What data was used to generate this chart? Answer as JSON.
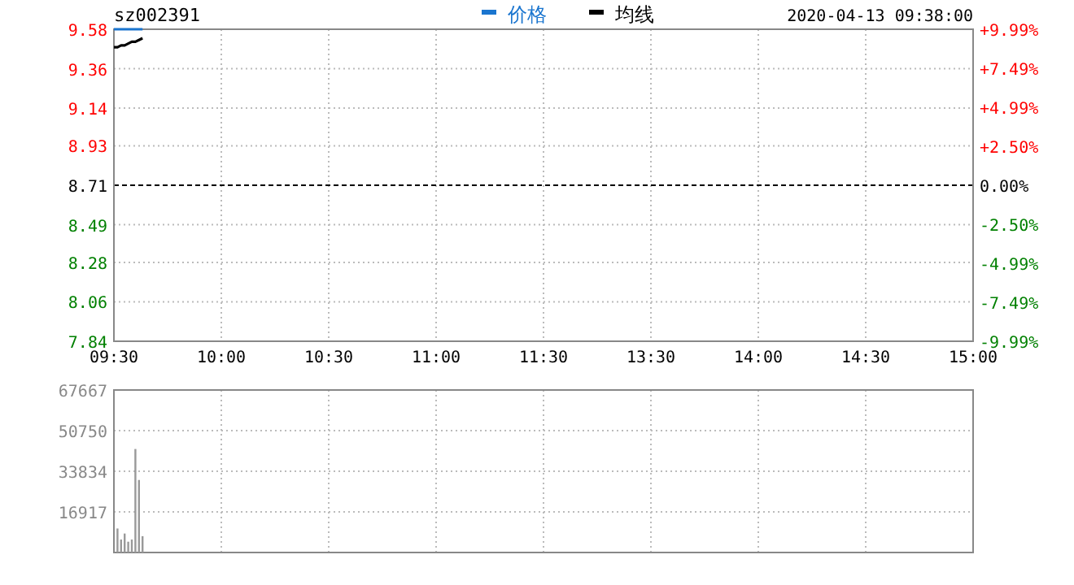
{
  "chart_data": [
    {
      "type": "line",
      "title": "sz002391",
      "annotations": [
        "2020-04-13 09:38:00"
      ],
      "legend": "top",
      "grid": true,
      "categories": [
        "09:30",
        null,
        null,
        null,
        null,
        null,
        null,
        null,
        null,
        null,
        null,
        null,
        null,
        null,
        null,
        null,
        null,
        null,
        null,
        null,
        null,
        null,
        null,
        null,
        null,
        null,
        null,
        null,
        null,
        null,
        "10:00",
        null,
        null,
        null,
        null,
        null,
        null,
        null,
        null,
        null,
        null,
        null,
        null,
        null,
        null,
        null,
        null,
        null,
        null,
        null,
        null,
        null,
        null,
        null,
        null,
        null,
        null,
        null,
        null,
        null,
        "10:30",
        null,
        null,
        null,
        null,
        null,
        null,
        null,
        null,
        null,
        null,
        null,
        null,
        null,
        null,
        null,
        null,
        null,
        null,
        null,
        null,
        null,
        null,
        null,
        null,
        null,
        null,
        null,
        null,
        null,
        "11:00",
        null,
        null,
        null,
        null,
        null,
        null,
        null,
        null,
        null,
        null,
        null,
        null,
        null,
        null,
        null,
        null,
        null,
        null,
        null,
        null,
        null,
        null,
        null,
        null,
        null,
        null,
        null,
        null,
        null,
        "11:30",
        null,
        null,
        null,
        null,
        null,
        null,
        null,
        null,
        null,
        null,
        null,
        null,
        null,
        null,
        null,
        null,
        null,
        null,
        null,
        null,
        null,
        null,
        null,
        null,
        null,
        null,
        null,
        null,
        null,
        "13:30",
        null,
        null,
        null,
        null,
        null,
        null,
        null,
        null,
        null,
        null,
        null,
        null,
        null,
        null,
        null,
        null,
        null,
        null,
        null,
        null,
        null,
        null,
        null,
        null,
        null,
        null,
        null,
        null,
        null,
        "14:00",
        null,
        null,
        null,
        null,
        null,
        null,
        null,
        null,
        null,
        null,
        null,
        null,
        null,
        null,
        null,
        null,
        null,
        null,
        null,
        null,
        null,
        null,
        null,
        null,
        null,
        null,
        null,
        null,
        null,
        "14:30",
        null,
        null,
        null,
        null,
        null,
        null,
        null,
        null,
        null,
        null,
        null,
        null,
        null,
        null,
        null,
        null,
        null,
        null,
        null,
        null,
        null,
        null,
        null,
        null,
        null,
        null,
        null,
        null,
        null,
        "15:00"
      ],
      "ylim": [
        7.84,
        9.58
      ],
      "yticks": [
        7.84,
        8.06,
        8.28,
        8.49,
        8.71,
        8.93,
        9.14,
        9.36,
        9.58
      ],
      "y2lim": [
        -9.99,
        9.99
      ],
      "y2ticks": [
        {
          "value": -9.99,
          "label": "-9.99%"
        },
        {
          "value": -7.49,
          "label": "-7.49%"
        },
        {
          "value": -4.99,
          "label": "-4.99%"
        },
        {
          "value": -2.5,
          "label": "-2.50%"
        },
        {
          "value": 0,
          "label": "0.00%"
        },
        {
          "value": 2.5,
          "label": "+2.50%"
        },
        {
          "value": 4.99,
          "label": "+4.99%"
        },
        {
          "value": 7.49,
          "label": "+7.49%"
        },
        {
          "value": 9.99,
          "label": "+9.99%"
        }
      ],
      "ref_lines": [
        {
          "axis": "y",
          "value": 8.71,
          "color": "#000000",
          "line_style": "dashed"
        }
      ],
      "series": [
        {
          "name": "价格",
          "color": "#1a75cf",
          "values": [
            9.58,
            9.58,
            9.58,
            9.58,
            9.58,
            9.58,
            9.58,
            9.58,
            9.58,
            null,
            null,
            null,
            null,
            null,
            null,
            null,
            null,
            null,
            null,
            null,
            null,
            null,
            null,
            null,
            null,
            null,
            null,
            null,
            null,
            null,
            null,
            null,
            null,
            null,
            null,
            null,
            null,
            null,
            null,
            null,
            null,
            null,
            null,
            null,
            null,
            null,
            null,
            null,
            null,
            null,
            null,
            null,
            null,
            null,
            null,
            null,
            null,
            null,
            null,
            null,
            null,
            null,
            null,
            null,
            null,
            null,
            null,
            null,
            null,
            null,
            null,
            null,
            null,
            null,
            null,
            null,
            null,
            null,
            null,
            null,
            null,
            null,
            null,
            null,
            null,
            null,
            null,
            null,
            null,
            null,
            null,
            null,
            null,
            null,
            null,
            null,
            null,
            null,
            null,
            null,
            null,
            null,
            null,
            null,
            null,
            null,
            null,
            null,
            null,
            null,
            null,
            null,
            null,
            null,
            null,
            null,
            null,
            null,
            null,
            null,
            null,
            null,
            null,
            null,
            null,
            null,
            null,
            null,
            null,
            null,
            null,
            null,
            null,
            null,
            null,
            null,
            null,
            null,
            null,
            null,
            null,
            null,
            null,
            null,
            null,
            null,
            null,
            null,
            null,
            null,
            null,
            null,
            null,
            null,
            null,
            null,
            null,
            null,
            null,
            null,
            null,
            null,
            null,
            null,
            null,
            null,
            null,
            null,
            null,
            null,
            null,
            null,
            null,
            null,
            null,
            null,
            null,
            null,
            null,
            null,
            null,
            null,
            null,
            null,
            null,
            null,
            null,
            null,
            null,
            null,
            null,
            null,
            null,
            null,
            null,
            null,
            null,
            null,
            null,
            null,
            null,
            null,
            null,
            null,
            null,
            null,
            null,
            null,
            null,
            null,
            null,
            null,
            null,
            null,
            null,
            null,
            null,
            null,
            null,
            null,
            null,
            null,
            null,
            null,
            null,
            null,
            null,
            null,
            null,
            null,
            null,
            null,
            null,
            null,
            null,
            null,
            null,
            null,
            null,
            null,
            null
          ]
        },
        {
          "name": "均线",
          "color": "#000000",
          "values": [
            9.48,
            9.48,
            9.49,
            9.49,
            9.5,
            9.51,
            9.51,
            9.52,
            9.53,
            null,
            null,
            null,
            null,
            null,
            null,
            null,
            null,
            null,
            null,
            null,
            null,
            null,
            null,
            null,
            null,
            null,
            null,
            null,
            null,
            null,
            null,
            null,
            null,
            null,
            null,
            null,
            null,
            null,
            null,
            null,
            null,
            null,
            null,
            null,
            null,
            null,
            null,
            null,
            null,
            null,
            null,
            null,
            null,
            null,
            null,
            null,
            null,
            null,
            null,
            null,
            null,
            null,
            null,
            null,
            null,
            null,
            null,
            null,
            null,
            null,
            null,
            null,
            null,
            null,
            null,
            null,
            null,
            null,
            null,
            null,
            null,
            null,
            null,
            null,
            null,
            null,
            null,
            null,
            null,
            null,
            null,
            null,
            null,
            null,
            null,
            null,
            null,
            null,
            null,
            null,
            null,
            null,
            null,
            null,
            null,
            null,
            null,
            null,
            null,
            null,
            null,
            null,
            null,
            null,
            null,
            null,
            null,
            null,
            null,
            null,
            null,
            null,
            null,
            null,
            null,
            null,
            null,
            null,
            null,
            null,
            null,
            null,
            null,
            null,
            null,
            null,
            null,
            null,
            null,
            null,
            null,
            null,
            null,
            null,
            null,
            null,
            null,
            null,
            null,
            null,
            null,
            null,
            null,
            null,
            null,
            null,
            null,
            null,
            null,
            null,
            null,
            null,
            null,
            null,
            null,
            null,
            null,
            null,
            null,
            null,
            null,
            null,
            null,
            null,
            null,
            null,
            null,
            null,
            null,
            null,
            null,
            null,
            null,
            null,
            null,
            null,
            null,
            null,
            null,
            null,
            null,
            null,
            null,
            null,
            null,
            null,
            null,
            null,
            null,
            null,
            null,
            null,
            null,
            null,
            null,
            null,
            null,
            null,
            null,
            null,
            null,
            null,
            null,
            null,
            null,
            null,
            null,
            null,
            null,
            null,
            null,
            null,
            null,
            null,
            null,
            null,
            null,
            null,
            null,
            null,
            null,
            null,
            null,
            null,
            null,
            null,
            null,
            null,
            null,
            null,
            null
          ]
        }
      ]
    },
    {
      "type": "bar",
      "grid": true,
      "tick_labels": "y",
      "color": "#999999",
      "categories": [
        null,
        null,
        null,
        null,
        null,
        null,
        null,
        null,
        null,
        null,
        null,
        null,
        null,
        null,
        null,
        null,
        null,
        null,
        null,
        null,
        null,
        null,
        null,
        null,
        null,
        null,
        null,
        null,
        null,
        null,
        null,
        null,
        null,
        null,
        null,
        null,
        null,
        null,
        null,
        null,
        null,
        null,
        null,
        null,
        null,
        null,
        null,
        null,
        null,
        null,
        null,
        null,
        null,
        null,
        null,
        null,
        null,
        null,
        null,
        null,
        null,
        null,
        null,
        null,
        null,
        null,
        null,
        null,
        null,
        null,
        null,
        null,
        null,
        null,
        null,
        null,
        null,
        null,
        null,
        null,
        null,
        null,
        null,
        null,
        null,
        null,
        null,
        null,
        null,
        null,
        null,
        null,
        null,
        null,
        null,
        null,
        null,
        null,
        null,
        null,
        null,
        null,
        null,
        null,
        null,
        null,
        null,
        null,
        null,
        null,
        null,
        null,
        null,
        null,
        null,
        null,
        null,
        null,
        null,
        null,
        null,
        null,
        null,
        null,
        null,
        null,
        null,
        null,
        null,
        null,
        null,
        null,
        null,
        null,
        null,
        null,
        null,
        null,
        null,
        null,
        null,
        null,
        null,
        null,
        null,
        null,
        null,
        null,
        null,
        null,
        null,
        null,
        null,
        null,
        null,
        null,
        null,
        null,
        null,
        null,
        null,
        null,
        null,
        null,
        null,
        null,
        null,
        null,
        null,
        null,
        null,
        null,
        null,
        null,
        null,
        null,
        null,
        null,
        null,
        null,
        null,
        null,
        null,
        null,
        null,
        null,
        null,
        null,
        null,
        null,
        null,
        null,
        null,
        null,
        null,
        null,
        null,
        null,
        null,
        null,
        null,
        null,
        null,
        null,
        null,
        null,
        null,
        null,
        null,
        null,
        null,
        null,
        null,
        null,
        null,
        null,
        null,
        null,
        null,
        null,
        null,
        null,
        null,
        null,
        null,
        null,
        null,
        null,
        null,
        null,
        null,
        null,
        null,
        null,
        null,
        null,
        null,
        null,
        null,
        null,
        null
      ],
      "ylim": [
        0,
        67667
      ],
      "yticks": [
        16917,
        33834,
        50750,
        67667
      ],
      "values": [
        null,
        10000,
        5400,
        7900,
        4500,
        5400,
        43100,
        30200,
        6800,
        null,
        null,
        null,
        null,
        null,
        null,
        null,
        null,
        null,
        null,
        null,
        null,
        null,
        null,
        null,
        null,
        null,
        null,
        null,
        null,
        null,
        null,
        null,
        null,
        null,
        null,
        null,
        null,
        null,
        null,
        null,
        null,
        null,
        null,
        null,
        null,
        null,
        null,
        null,
        null,
        null,
        null,
        null,
        null,
        null,
        null,
        null,
        null,
        null,
        null,
        null,
        null,
        null,
        null,
        null,
        null,
        null,
        null,
        null,
        null,
        null,
        null,
        null,
        null,
        null,
        null,
        null,
        null,
        null,
        null,
        null,
        null,
        null,
        null,
        null,
        null,
        null,
        null,
        null,
        null,
        null,
        null,
        null,
        null,
        null,
        null,
        null,
        null,
        null,
        null,
        null,
        null,
        null,
        null,
        null,
        null,
        null,
        null,
        null,
        null,
        null,
        null,
        null,
        null,
        null,
        null,
        null,
        null,
        null,
        null,
        null,
        null,
        null,
        null,
        null,
        null,
        null,
        null,
        null,
        null,
        null,
        null,
        null,
        null,
        null,
        null,
        null,
        null,
        null,
        null,
        null,
        null,
        null,
        null,
        null,
        null,
        null,
        null,
        null,
        null,
        null,
        null,
        null,
        null,
        null,
        null,
        null,
        null,
        null,
        null,
        null,
        null,
        null,
        null,
        null,
        null,
        null,
        null,
        null,
        null,
        null,
        null,
        null,
        null,
        null,
        null,
        null,
        null,
        null,
        null,
        null,
        null,
        null,
        null,
        null,
        null,
        null,
        null,
        null,
        null,
        null,
        null,
        null,
        null,
        null,
        null,
        null,
        null,
        null,
        null,
        null,
        null,
        null,
        null,
        null,
        null,
        null,
        null,
        null,
        null,
        null,
        null,
        null,
        null,
        null,
        null,
        null,
        null,
        null,
        null,
        null,
        null,
        null,
        null,
        null,
        null,
        null,
        null,
        null,
        null,
        null,
        null,
        null,
        null,
        null,
        null,
        null,
        null,
        null,
        null,
        null,
        null
      ]
    }
  ]
}
